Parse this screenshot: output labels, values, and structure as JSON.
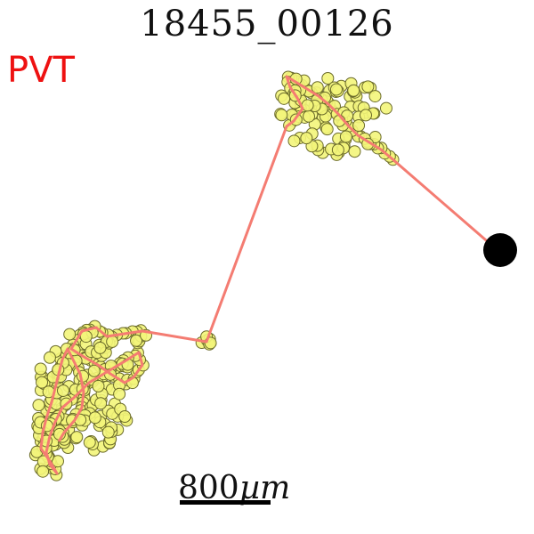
{
  "figure": {
    "title": "18455_00126",
    "tag": "PVT",
    "tag_color": "#ee1111",
    "scale_value": "800",
    "scale_unit": "µm"
  },
  "colors": {
    "path": "#f47c72",
    "marker_fill": "#f3f57a",
    "marker_stroke": "#6b6b2a",
    "end_dot": "#000000"
  }
}
